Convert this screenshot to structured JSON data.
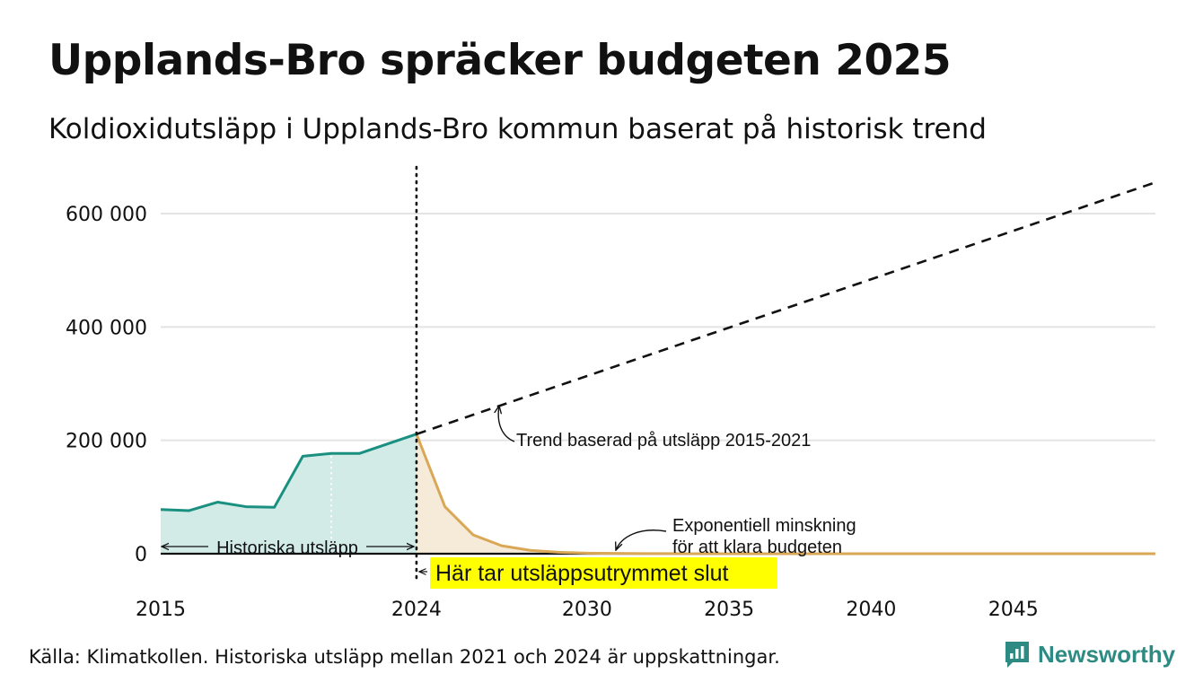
{
  "header": {
    "title": "Upplands-Bro spräcker budgeten 2025",
    "subtitle": "Koldioxidutsläpp i Upplands-Bro kommun baserat på historisk trend"
  },
  "footer": {
    "source": "Källa: Klimatkollen. Historiska utsläpp mellan 2021 och 2024 är uppskattningar."
  },
  "brand": {
    "name": "Newsworthy"
  },
  "colors": {
    "historical_line": "#1a9080",
    "historical_fill": "#d2ebe6",
    "budget_line": "#d9a755",
    "budget_fill": "#f5ebd8",
    "trend_line": "#111111",
    "grid": "#e4e4e4",
    "highlight": "#ffff00",
    "brand": "#2e8b84"
  },
  "chart_data": {
    "type": "area",
    "xlim": [
      2015,
      2050
    ],
    "ylim": [
      0,
      650000
    ],
    "grid": true,
    "x_ticks": [
      {
        "value": 2015,
        "label": "2015"
      },
      {
        "value": 2024,
        "label": "2024"
      },
      {
        "value": 2030,
        "label": "2030"
      },
      {
        "value": 2035,
        "label": "2035"
      },
      {
        "value": 2040,
        "label": "2040"
      },
      {
        "value": 2045,
        "label": "2045"
      }
    ],
    "y_ticks": [
      {
        "value": 0,
        "label": "0"
      },
      {
        "value": 200000,
        "label": "200 000"
      },
      {
        "value": 400000,
        "label": "400 000"
      },
      {
        "value": 600000,
        "label": "600 000"
      }
    ],
    "series": [
      {
        "key": "historical",
        "style": "area",
        "x": [
          2015,
          2016,
          2017,
          2018,
          2019,
          2020,
          2021,
          2022,
          2023,
          2024
        ],
        "y": [
          78000,
          76000,
          91000,
          83000,
          82000,
          172000,
          177000,
          177000,
          194000,
          211000
        ]
      },
      {
        "key": "budget",
        "style": "area",
        "x": [
          2024,
          2025,
          2026,
          2027,
          2028,
          2029,
          2030,
          2031,
          2032,
          2033,
          2034,
          2035,
          2040,
          2045,
          2050
        ],
        "y": [
          211000,
          83000,
          33000,
          14000,
          6000,
          2500,
          1000,
          500,
          250,
          100,
          50,
          20,
          0,
          0,
          0
        ]
      },
      {
        "key": "trend",
        "style": "dashed",
        "x": [
          2024,
          2050
        ],
        "y": [
          211000,
          655000
        ]
      }
    ],
    "markers": [
      {
        "type": "vline",
        "x": 2024,
        "style": "dotted"
      },
      {
        "type": "vline",
        "x": 2021,
        "style": "dotted-white"
      }
    ],
    "annotations": {
      "trend": "Trend baserad på utsläpp 2015-2021",
      "exp_line1": "Exponentiell minskning",
      "exp_line2": "för att klara budgeten",
      "historical": "Historiska utsläpp",
      "budget_end": "Här tar utsläppsutrymmet slut"
    }
  }
}
